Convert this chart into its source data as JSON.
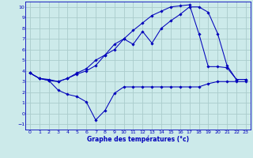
{
  "bg_color": "#cceaea",
  "grid_color": "#aacccc",
  "line_color": "#0000bb",
  "xlabel": "Graphe des températures (°c)",
  "xlim": [
    -0.5,
    23.5
  ],
  "ylim": [
    -1.5,
    10.5
  ],
  "xticks": [
    0,
    1,
    2,
    3,
    4,
    5,
    6,
    7,
    8,
    9,
    10,
    11,
    12,
    13,
    14,
    15,
    16,
    17,
    18,
    19,
    20,
    21,
    22,
    23
  ],
  "yticks": [
    -1,
    0,
    1,
    2,
    3,
    4,
    5,
    6,
    7,
    8,
    9,
    10
  ],
  "curve1_x": [
    0,
    1,
    2,
    3,
    4,
    5,
    6,
    7,
    8,
    9,
    10,
    11,
    12,
    13,
    14,
    15,
    16,
    17,
    18,
    19,
    20,
    21,
    22,
    23
  ],
  "curve1_y": [
    3.8,
    3.3,
    3.2,
    3.0,
    3.3,
    3.7,
    4.0,
    4.5,
    5.5,
    6.5,
    7.0,
    6.5,
    7.7,
    6.6,
    8.0,
    8.7,
    9.3,
    10.0,
    10.0,
    9.5,
    7.5,
    4.5,
    3.2,
    3.2
  ],
  "curve2_x": [
    0,
    1,
    2,
    3,
    4,
    5,
    6,
    7,
    8,
    9,
    10,
    11,
    12,
    13,
    14,
    15,
    16,
    17,
    18,
    19,
    20,
    21,
    22,
    23
  ],
  "curve2_y": [
    3.8,
    3.3,
    3.1,
    2.2,
    1.8,
    1.6,
    1.1,
    -0.6,
    0.3,
    1.9,
    2.5,
    2.5,
    2.5,
    2.5,
    2.5,
    2.5,
    2.5,
    2.5,
    2.5,
    2.8,
    3.0,
    3.0,
    3.0,
    3.0
  ],
  "curve3_x": [
    0,
    1,
    2,
    3,
    4,
    5,
    6,
    7,
    8,
    9,
    10,
    11,
    12,
    13,
    14,
    15,
    16,
    17,
    18,
    19,
    20,
    21,
    22,
    23
  ],
  "curve3_y": [
    3.8,
    3.3,
    3.1,
    3.0,
    3.3,
    3.8,
    4.2,
    5.0,
    5.5,
    6.0,
    7.0,
    7.8,
    8.5,
    9.2,
    9.6,
    10.0,
    10.1,
    10.2,
    7.5,
    4.4,
    4.4,
    4.3,
    3.2,
    3.2
  ]
}
